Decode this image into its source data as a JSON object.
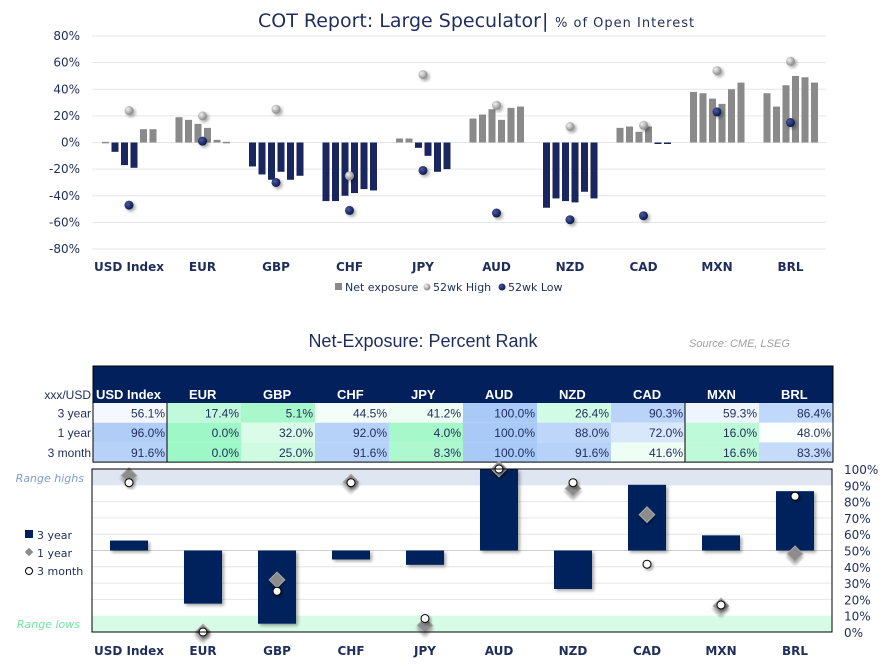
{
  "colors": {
    "navy": "#1a2660",
    "navy_rank": "#02205c",
    "gray": "#8a8a8a",
    "text": "#1f2d5c",
    "header_bg": "#02205c",
    "cell_low": "#9ef7c6",
    "cell_mid": "#ffffff",
    "cell_high": "#a9c9f7",
    "band_high": "#dfe5f1",
    "band_low": "#d8fbe6",
    "range_high_text": "#7f9bd6",
    "range_low_text": "#6fe39f"
  },
  "source": "Source: CME, LSEG",
  "chart_data": [
    {
      "type": "bar",
      "title": "COT Report: Large Speculator",
      "title_separator": "|",
      "subtitle": "% of Open Interest",
      "categories": [
        "USD Index",
        "EUR",
        "GBP",
        "CHF",
        "JPY",
        "AUD",
        "NZD",
        "CAD",
        "MXN",
        "BRL"
      ],
      "ylim": [
        -80,
        80
      ],
      "yticks": [
        "80%",
        "60%",
        "40%",
        "20%",
        "0%",
        "-20%",
        "-40%",
        "-60%",
        "-80%"
      ],
      "ytick_values": [
        80,
        60,
        40,
        20,
        0,
        -20,
        -40,
        -60,
        -80
      ],
      "grid": true,
      "legend_placement": "bottom",
      "legend": [
        "Net exposure",
        "52wk High",
        "52wk Low"
      ],
      "series": [
        {
          "name": "Net exposure",
          "values": [
            [
              0.5,
              -7,
              -17,
              -19,
              10,
              10
            ],
            [
              19,
              17,
              14,
              11,
              2,
              0.5
            ],
            [
              -18,
              -24,
              -28,
              -22,
              -28,
              -25
            ],
            [
              -44,
              -44,
              -40,
              -38,
              -35,
              -36
            ],
            [
              3,
              3,
              -4,
              -10,
              -22,
              -20
            ],
            [
              18,
              21,
              25,
              17,
              26,
              27
            ],
            [
              -49,
              -42,
              -44,
              -45,
              -37,
              -42
            ],
            [
              11,
              12,
              8,
              12,
              -0.5,
              -0.5
            ],
            [
              38,
              37,
              33,
              29,
              40,
              45
            ],
            [
              37,
              27,
              43,
              50,
              49,
              45
            ]
          ]
        },
        {
          "name": "52wk High",
          "values": [
            24,
            20,
            25,
            -25,
            51,
            28,
            12,
            13,
            54,
            61
          ]
        },
        {
          "name": "52wk Low",
          "values": [
            -47,
            1,
            -30,
            -51,
            -21,
            -53,
            -58,
            -55,
            23,
            15
          ]
        }
      ]
    },
    {
      "type": "bar",
      "title": "Net-Exposure: Percent Rank",
      "categories": [
        "USD Index",
        "EUR",
        "GBP",
        "CHF",
        "JPY",
        "AUD",
        "NZD",
        "CAD",
        "MXN",
        "BRL"
      ],
      "ylim": [
        0,
        100
      ],
      "baseline": 50,
      "yticks": [
        "100%",
        "90%",
        "80%",
        "70%",
        "60%",
        "50%",
        "40%",
        "30%",
        "20%",
        "10%",
        "0%"
      ],
      "ytick_values": [
        100,
        90,
        80,
        70,
        60,
        50,
        40,
        30,
        20,
        10,
        0
      ],
      "grid": true,
      "bands": [
        {
          "label": "Range highs",
          "from": 90,
          "to": 100
        },
        {
          "label": "Range lows",
          "from": 0,
          "to": 10
        }
      ],
      "legend_placement": "left",
      "legend": [
        "3 year",
        "1 year",
        "3 month"
      ],
      "series": [
        {
          "name": "3 year",
          "marker": "bar",
          "values": [
            56.1,
            17.4,
            5.1,
            44.5,
            41.2,
            100.0,
            26.4,
            90.3,
            59.3,
            86.4
          ]
        },
        {
          "name": "1 year",
          "marker": "diamond",
          "values": [
            96.0,
            0.0,
            32.0,
            92.0,
            4.0,
            100.0,
            88.0,
            72.0,
            16.0,
            48.0
          ]
        },
        {
          "name": "3 month",
          "marker": "circle",
          "values": [
            91.6,
            0.0,
            25.0,
            91.6,
            8.3,
            100.0,
            91.6,
            41.6,
            16.6,
            83.3
          ]
        }
      ]
    }
  ],
  "table": {
    "corner": "xxx/USD",
    "columns": [
      "USD Index",
      "EUR",
      "GBP",
      "CHF",
      "JPY",
      "AUD",
      "NZD",
      "CAD",
      "MXN",
      "BRL"
    ],
    "rows": [
      {
        "label": "3 year",
        "values": [
          56.1,
          17.4,
          5.1,
          44.5,
          41.2,
          100.0,
          26.4,
          90.3,
          59.3,
          86.4
        ],
        "text": [
          "56.1%",
          "17.4%",
          "5.1%",
          "44.5%",
          "41.2%",
          "100.0%",
          "26.4%",
          "90.3%",
          "59.3%",
          "86.4%"
        ]
      },
      {
        "label": "1 year",
        "values": [
          96.0,
          0.0,
          32.0,
          92.0,
          4.0,
          100.0,
          88.0,
          72.0,
          16.0,
          48.0
        ],
        "text": [
          "96.0%",
          "0.0%",
          "32.0%",
          "92.0%",
          "4.0%",
          "100.0%",
          "88.0%",
          "72.0%",
          "16.0%",
          "48.0%"
        ]
      },
      {
        "label": "3 month",
        "values": [
          91.6,
          0.0,
          25.0,
          91.6,
          8.3,
          100.0,
          91.6,
          41.6,
          16.6,
          83.3
        ],
        "text": [
          "91.6%",
          "0.0%",
          "25.0%",
          "91.6%",
          "8.3%",
          "100.0%",
          "91.6%",
          "41.6%",
          "16.6%",
          "83.3%"
        ]
      }
    ]
  }
}
